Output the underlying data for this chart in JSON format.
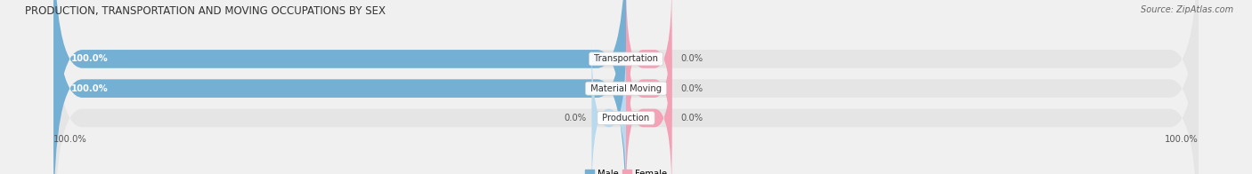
{
  "title": "PRODUCTION, TRANSPORTATION AND MOVING OCCUPATIONS BY SEX",
  "source": "Source: ZipAtlas.com",
  "categories": [
    "Transportation",
    "Material Moving",
    "Production"
  ],
  "male_pct": [
    100.0,
    100.0,
    0.0
  ],
  "female_pct": [
    0.0,
    0.0,
    0.0
  ],
  "male_color": "#74afd4",
  "female_color": "#f4a0b5",
  "male_color_light": "#b8d9ee",
  "bar_bg_color": "#e5e5e5",
  "bar_height": 0.62,
  "figsize": [
    14.06,
    1.96
  ],
  "dpi": 100,
  "title_fontsize": 8.5,
  "label_fontsize": 7.2,
  "tick_label_fontsize": 7.2,
  "source_fontsize": 7,
  "background_color": "#f0f0f0",
  "left_axis_label": "100.0%",
  "right_axis_label": "100.0%"
}
